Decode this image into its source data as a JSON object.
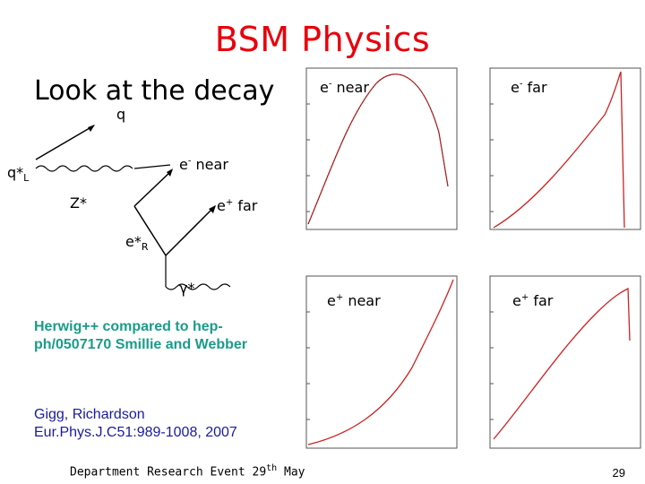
{
  "slide": {
    "title": "BSM Physics",
    "subtitle": "Look at the decay",
    "diagram": {
      "q": "q",
      "q_star": "q*",
      "q_star_sub": "L",
      "e_near_base": "e",
      "e_near_sup": "-",
      "e_near_rest": " near",
      "z_star": "Z*",
      "e_far_base": "e",
      "e_far_sup": "+",
      "e_far_rest": " far",
      "e_star": "e*",
      "e_star_sub": "R",
      "gamma": "γ*"
    },
    "herwig_note": "Herwig++ compared to hep-ph/0507170 Smillie and Webber",
    "reference_line1": "Gigg, Richardson",
    "reference_line2": "Eur.Phys.J.C51:989-1008, 2007",
    "footer_text": "Department Research Event 29",
    "footer_sup": "th",
    "footer_rest": " May",
    "page_number": "29",
    "plots": [
      {
        "label_base": "e",
        "label_sup": "-",
        "label_rest": " near"
      },
      {
        "label_base": "e",
        "label_sup": "-",
        "label_rest": " far"
      },
      {
        "label_base": "e",
        "label_sup": "+",
        "label_rest": " near"
      },
      {
        "label_base": "e",
        "label_sup": "+",
        "label_rest": " far"
      }
    ]
  },
  "colors": {
    "title": "#e8000b",
    "herwig_note": "#1a9c88",
    "reference": "#1a1aa0",
    "curve": "#cc2222"
  }
}
